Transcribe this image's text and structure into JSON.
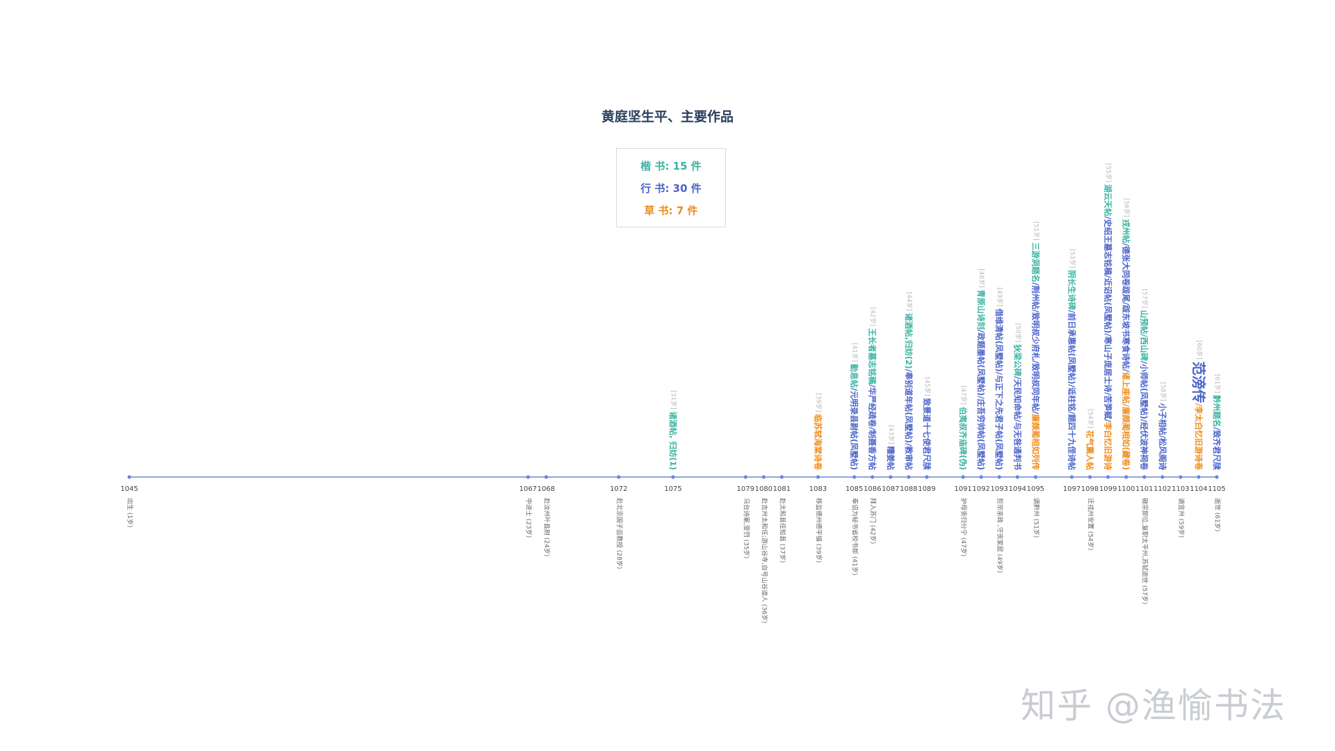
{
  "title": "黄庭坚生平、主要作品",
  "legend": [
    {
      "label": "楷 书: 15 件",
      "color": "#3bb3a0"
    },
    {
      "label": "行 书: 30 件",
      "color": "#4a63c9"
    },
    {
      "label": "草 书: 7 件",
      "color": "#f08c1a"
    }
  ],
  "colors": {
    "kai": "#3bb3a0",
    "xing": "#4a63c9",
    "cao": "#f08c1a",
    "axis": "#6b86d8",
    "age": "#b8b8b8",
    "life": "#666666"
  },
  "watermark": "知乎 @渔愉书法",
  "chart_data": {
    "type": "timeline",
    "x_range": [
      1045,
      1105
    ],
    "ticks": [
      1045,
      1067,
      1068,
      1072,
      1075,
      1079,
      1080,
      1081,
      1083,
      1085,
      1086,
      1087,
      1088,
      1089,
      1091,
      1092,
      1093,
      1094,
      1095,
      1097,
      1098,
      1099,
      1100,
      1101,
      1102,
      1103,
      1104,
      1105
    ],
    "events": [
      {
        "year": 1045,
        "text": "出生 (1岁)"
      },
      {
        "year": 1067,
        "text": "中进士 (23岁)"
      },
      {
        "year": 1068,
        "text": "赴汝州叶县尉 (24岁)"
      },
      {
        "year": 1072,
        "text": "赴北京国子监教授 (28岁)"
      },
      {
        "year": 1079,
        "text": "乌台诗案,受罚 (35岁)"
      },
      {
        "year": 1080,
        "text": "赴吉州太和任;游山谷寺,自号山谷道人 (36岁)"
      },
      {
        "year": 1081,
        "text": "赴太和县任知县 (37岁)"
      },
      {
        "year": 1083,
        "text": "移监德州德平镇 (39岁)"
      },
      {
        "year": 1085,
        "text": "奉诏为秘书省校书郎 (41岁)"
      },
      {
        "year": 1086,
        "text": "拜入苏门 (42岁)"
      },
      {
        "year": 1091,
        "text": "护母丧归分宁 (47岁)"
      },
      {
        "year": 1093,
        "text": "哲宗亲政 ,守丧家居 (49岁)"
      },
      {
        "year": 1095,
        "text": "谪黔州 (51岁)"
      },
      {
        "year": 1098,
        "text": "迁戎州安置 (54岁)"
      },
      {
        "year": 1101,
        "text": "徽宗即位,复职太平州,苏轼逝世 (57岁)"
      },
      {
        "year": 1103,
        "text": "谪宜州 (59岁)"
      },
      {
        "year": 1105,
        "text": "逝世 (61岁)"
      }
    ],
    "works": [
      {
        "year": 1075,
        "age": "[31岁]",
        "segs": [
          {
            "t": "诸酒帖, 归妨(1)",
            "s": "kai"
          }
        ]
      },
      {
        "year": 1083,
        "age": "[39岁]",
        "segs": [
          {
            "t": "临苏轼海棠诗卷",
            "s": "cao"
          }
        ]
      },
      {
        "year": 1085,
        "age": "[41岁]",
        "segs": [
          {
            "t": "勤息帖",
            "s": "kai"
          },
          {
            "t": "/元明录县尉帖(凤墅帖)",
            "s": "xing"
          }
        ]
      },
      {
        "year": 1086,
        "age": "[42岁]",
        "segs": [
          {
            "t": "王长者墓志铭稿",
            "s": "kai"
          },
          {
            "t": "/华严经疏卷/制聂香方帖",
            "s": "xing"
          }
        ]
      },
      {
        "year": 1087,
        "age": "[43岁]",
        "segs": [
          {
            "t": "糟姜帖",
            "s": "xing"
          }
        ]
      },
      {
        "year": 1088,
        "age": "[44岁]",
        "segs": [
          {
            "t": "诸酒帖,归妨(2)",
            "s": "kai"
          },
          {
            "t": "/奉别道年帖(凤墅帖)/教审帖",
            "s": "xing"
          }
        ]
      },
      {
        "year": 1089,
        "age": "[45岁]",
        "segs": [
          {
            "t": "致景道十七使君尺牍",
            "s": "xing"
          }
        ]
      },
      {
        "year": 1091,
        "age": "[47岁]",
        "segs": [
          {
            "t": "伯夷叔齐庙碑(伪)",
            "s": "kai"
          }
        ]
      },
      {
        "year": 1092,
        "age": "[48岁]",
        "segs": [
          {
            "t": "青原山诗刻",
            "s": "kai"
          },
          {
            "t": "/政题墨帖(凤墅帖)/庄吾穷帅帖(凤墅帖)",
            "s": "xing"
          }
        ]
      },
      {
        "year": 1093,
        "age": "[49岁]",
        "segs": [
          {
            "t": "借维清帖(凤墅帖)/与正下之先君子帖(凤墅帖)",
            "s": "xing"
          }
        ]
      },
      {
        "year": 1094,
        "age": "[50岁]",
        "segs": [
          {
            "t": "狄梁公碑",
            "s": "kai"
          },
          {
            "t": "/天民知命帖/与无咎通判书",
            "s": "xing"
          }
        ]
      },
      {
        "year": 1095,
        "age": "[51岁]",
        "segs": [
          {
            "t": "三游洞题名",
            "s": "kai"
          },
          {
            "t": "/荆州帖/致明叔少府札/致明叔同年帖/",
            "s": "xing"
          },
          {
            "t": "廉颇蔺相如列传",
            "s": "cao"
          }
        ]
      },
      {
        "year": 1097,
        "age": "[53岁]",
        "segs": [
          {
            "t": "阴长生诗碑",
            "s": "kai"
          },
          {
            "t": "/前日承惠帖(凤墅帖)/诋柱铭/题四十九侄诗帖",
            "s": "xing"
          }
        ]
      },
      {
        "year": 1098,
        "age": "[54岁]",
        "segs": [
          {
            "t": "花气熏人帖",
            "s": "cao"
          }
        ]
      },
      {
        "year": 1099,
        "age": "[55岁]",
        "segs": [
          {
            "t": "湖云天帖",
            "s": "kai"
          },
          {
            "t": "/史绍王墓志铭稿/近诏帖(凤墅帖)/寒山子庞居士诗/苦笋赋/",
            "s": "xing"
          },
          {
            "t": "李白忆旧游诗",
            "s": "cao"
          }
        ]
      },
      {
        "year": 1100,
        "age": "[56岁]",
        "segs": [
          {
            "t": "戎州帖",
            "s": "kai"
          },
          {
            "t": "/德张大同卷跋尾/跋东坡书寒食诗帖/",
            "s": "xing"
          },
          {
            "t": "诸上座帖/廉颇蔺相如(藏卷)",
            "s": "cao"
          }
        ]
      },
      {
        "year": 1101,
        "age": "[57岁]",
        "segs": [
          {
            "t": "山预帖/西山碑",
            "s": "kai"
          },
          {
            "t": "/小师帖(凤墅帖)/经伏波神祠卷",
            "s": "xing"
          }
        ]
      },
      {
        "year": 1102,
        "age": "[58岁]",
        "segs": [
          {
            "t": "小子相帖/松风阁诗",
            "s": "xing"
          }
        ]
      },
      {
        "year": 1104,
        "age": "[60岁]",
        "segs": [
          {
            "t": "范滂传",
            "s": "xing",
            "big": true
          },
          {
            "t": "/李太白忆旧游诗卷",
            "s": "cao"
          }
        ]
      },
      {
        "year": 1105,
        "age": "[61岁]",
        "segs": [
          {
            "t": "黔州题名",
            "s": "kai"
          },
          {
            "t": "/致齐君尺牍",
            "s": "xing"
          }
        ]
      }
    ]
  }
}
